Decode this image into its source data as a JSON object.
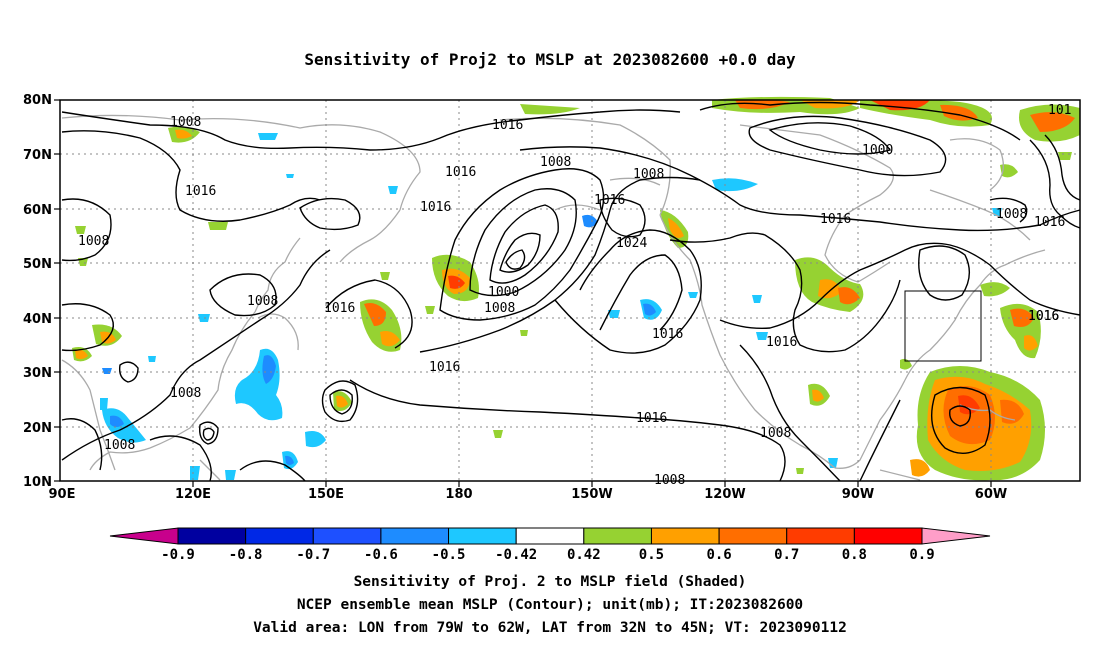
{
  "title": "Sensitivity of Proj2 to MSLP at 2023082600 +0.0 day",
  "map": {
    "lat_labels": [
      "80N",
      "70N",
      "60N",
      "50N",
      "40N",
      "30N",
      "20N",
      "10N"
    ],
    "lon_labels": [
      "90E",
      "120E",
      "150E",
      "180",
      "150W",
      "120W",
      "90W",
      "60W"
    ],
    "contour_labels": [
      "1008",
      "1016",
      "1016",
      "1016",
      "1008",
      "1016",
      "1008",
      "1016",
      "1016",
      "1008",
      "1000",
      "1008",
      "1024",
      "1016",
      "1016",
      "1016",
      "1008",
      "1016",
      "1016",
      "1016",
      "1000",
      "1016",
      "1008",
      "101",
      "1016",
      "1008",
      "1008"
    ],
    "valid_area": {
      "lon_range": [
        "79W",
        "62W"
      ],
      "lat_range": [
        "32N",
        "45N"
      ]
    }
  },
  "colorbar": {
    "labels": [
      "-0.9",
      "-0.8",
      "-0.7",
      "-0.6",
      "-0.5",
      "-0.42",
      "0.42",
      "0.5",
      "0.6",
      "0.7",
      "0.8",
      "0.9"
    ],
    "colors": [
      "#0000a0",
      "#0028e6",
      "#1e50ff",
      "#1e8cff",
      "#1ec8ff",
      "#ffffff",
      "#96d232",
      "#ffa000",
      "#ff6e00",
      "#ff3c00",
      "#ff0000"
    ],
    "low_end_color": "#c8008c",
    "high_end_color": "#ff9ec8"
  },
  "shading_colors": {
    "green": "#96d232",
    "orange": "#ffa000",
    "red_orange": "#ff6e00",
    "red": "#ff3c00",
    "light_blue": "#1ec8ff",
    "blue": "#1e8cff"
  },
  "footer": {
    "line1": "Sensitivity of Proj. 2 to MSLP field (Shaded)",
    "line2": "NCEP ensemble mean MSLP (Contour); unit(mb); IT:2023082600",
    "line3": "Valid area: LON from 79W to 62W, LAT from 32N to 45N; VT: 2023090112"
  }
}
